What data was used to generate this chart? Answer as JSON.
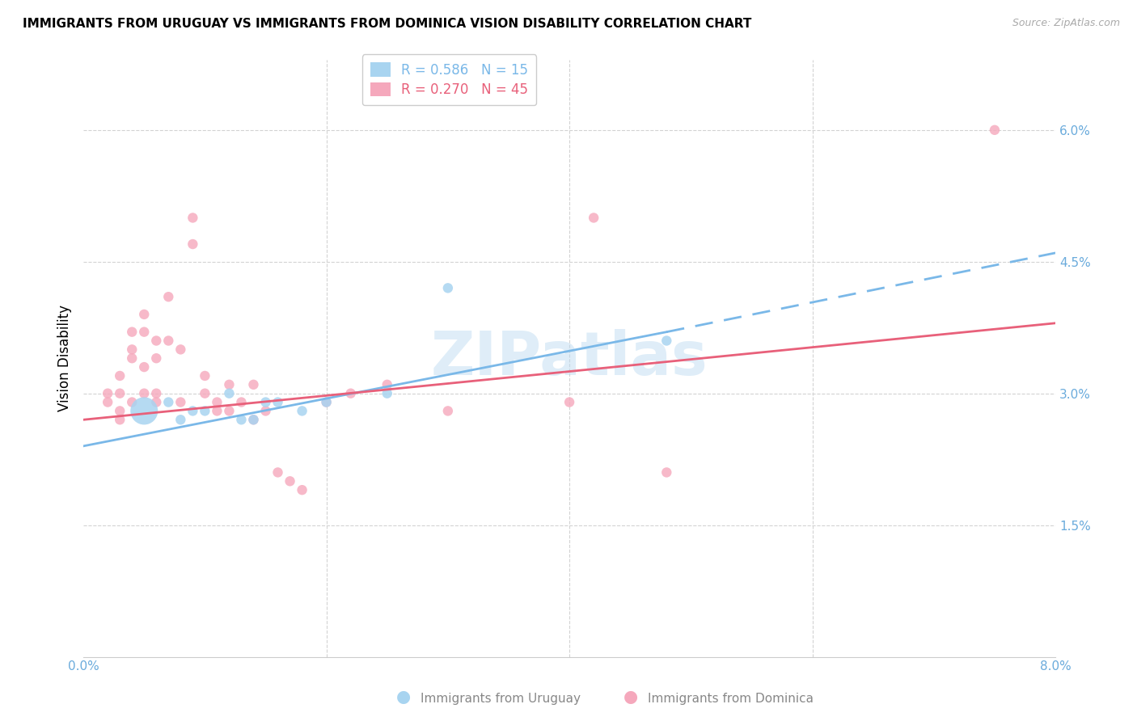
{
  "title": "IMMIGRANTS FROM URUGUAY VS IMMIGRANTS FROM DOMINICA VISION DISABILITY CORRELATION CHART",
  "source": "Source: ZipAtlas.com",
  "ylabel": "Vision Disability",
  "ytick_labels": [
    "6.0%",
    "4.5%",
    "3.0%",
    "1.5%"
  ],
  "ytick_values": [
    0.06,
    0.045,
    0.03,
    0.015
  ],
  "xlim": [
    0.0,
    0.08
  ],
  "ylim": [
    0.0,
    0.068
  ],
  "legend_r1": "R = 0.586",
  "legend_n1": "N = 15",
  "legend_r2": "R = 0.270",
  "legend_n2": "N = 45",
  "color_uruguay": "#a8d4f0",
  "color_dominica": "#f5a8bc",
  "color_trendline_uruguay": "#7ab8e8",
  "color_trendline_dominica": "#e8607a",
  "color_axis_labels": "#6aabdc",
  "watermark": "ZIPatlas",
  "uruguay_points": [
    [
      0.005,
      0.028
    ],
    [
      0.007,
      0.029
    ],
    [
      0.008,
      0.027
    ],
    [
      0.009,
      0.028
    ],
    [
      0.01,
      0.028
    ],
    [
      0.012,
      0.03
    ],
    [
      0.013,
      0.027
    ],
    [
      0.014,
      0.027
    ],
    [
      0.015,
      0.029
    ],
    [
      0.016,
      0.029
    ],
    [
      0.018,
      0.028
    ],
    [
      0.02,
      0.029
    ],
    [
      0.025,
      0.03
    ],
    [
      0.03,
      0.042
    ],
    [
      0.048,
      0.036
    ]
  ],
  "dominica_points": [
    [
      0.002,
      0.03
    ],
    [
      0.002,
      0.029
    ],
    [
      0.003,
      0.032
    ],
    [
      0.003,
      0.03
    ],
    [
      0.003,
      0.028
    ],
    [
      0.003,
      0.027
    ],
    [
      0.004,
      0.037
    ],
    [
      0.004,
      0.035
    ],
    [
      0.004,
      0.034
    ],
    [
      0.004,
      0.029
    ],
    [
      0.005,
      0.039
    ],
    [
      0.005,
      0.037
    ],
    [
      0.005,
      0.033
    ],
    [
      0.005,
      0.03
    ],
    [
      0.006,
      0.036
    ],
    [
      0.006,
      0.034
    ],
    [
      0.006,
      0.03
    ],
    [
      0.006,
      0.029
    ],
    [
      0.007,
      0.041
    ],
    [
      0.007,
      0.036
    ],
    [
      0.008,
      0.035
    ],
    [
      0.008,
      0.029
    ],
    [
      0.009,
      0.05
    ],
    [
      0.01,
      0.032
    ],
    [
      0.01,
      0.03
    ],
    [
      0.011,
      0.029
    ],
    [
      0.011,
      0.028
    ],
    [
      0.012,
      0.031
    ],
    [
      0.012,
      0.028
    ],
    [
      0.013,
      0.029
    ],
    [
      0.014,
      0.031
    ],
    [
      0.014,
      0.027
    ],
    [
      0.015,
      0.028
    ],
    [
      0.016,
      0.021
    ],
    [
      0.017,
      0.02
    ],
    [
      0.018,
      0.019
    ],
    [
      0.02,
      0.029
    ],
    [
      0.022,
      0.03
    ],
    [
      0.025,
      0.031
    ],
    [
      0.03,
      0.028
    ],
    [
      0.04,
      0.029
    ],
    [
      0.042,
      0.05
    ],
    [
      0.048,
      0.021
    ],
    [
      0.075,
      0.06
    ],
    [
      0.009,
      0.047
    ]
  ],
  "uruguay_sizes": [
    600,
    80,
    80,
    80,
    80,
    80,
    80,
    80,
    80,
    80,
    80,
    80,
    80,
    80,
    80
  ],
  "dominica_sizes": [
    80,
    80,
    80,
    80,
    80,
    80,
    80,
    80,
    80,
    80,
    80,
    80,
    80,
    80,
    80,
    80,
    80,
    80,
    80,
    80,
    80,
    80,
    80,
    80,
    80,
    80,
    80,
    80,
    80,
    80,
    80,
    80,
    80,
    80,
    80,
    80,
    80,
    80,
    80,
    80,
    80,
    80,
    80,
    80,
    80
  ],
  "trendline_uruguay_solid": [
    [
      0.0,
      0.024
    ],
    [
      0.048,
      0.037
    ]
  ],
  "trendline_uruguay_dashed": [
    [
      0.048,
      0.037
    ],
    [
      0.08,
      0.046
    ]
  ],
  "trendline_dominica": [
    [
      0.0,
      0.027
    ],
    [
      0.08,
      0.038
    ]
  ],
  "xtick_minor": [
    0.02,
    0.04,
    0.06
  ]
}
